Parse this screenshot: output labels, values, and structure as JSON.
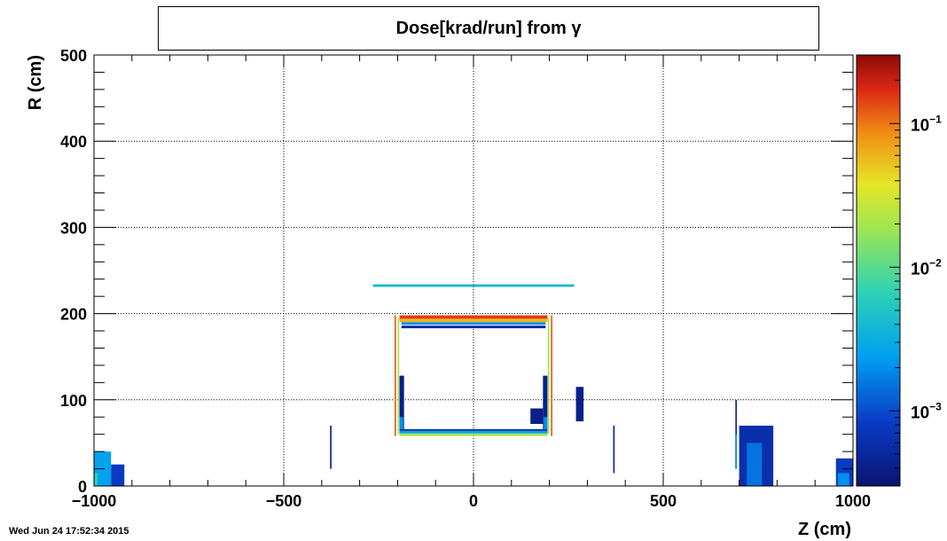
{
  "chart_data": {
    "type": "heatmap",
    "title": "Dose[krad/run] from γ",
    "xlabel": "Z (cm)",
    "ylabel": "R (cm)",
    "xlim": [
      -1000,
      1000
    ],
    "ylim": [
      0,
      500
    ],
    "x_ticks": [
      -1000,
      -500,
      0,
      500,
      1000
    ],
    "x_tick_labels": [
      "−1000",
      "−500",
      "0",
      "500",
      "1000"
    ],
    "y_ticks": [
      0,
      100,
      200,
      300,
      400,
      500
    ],
    "y_tick_labels": [
      "0",
      "100",
      "200",
      "300",
      "400",
      "500"
    ],
    "grid": true,
    "colorbar": {
      "scale": "log",
      "range": [
        0.0003,
        0.3
      ],
      "ticks": [
        0.001,
        0.01,
        0.1
      ],
      "tick_base": "10",
      "tick_exponents": [
        "−3",
        "−2",
        "−1"
      ]
    },
    "regions": [
      {
        "type": "rect",
        "z": [
          -265,
          265
        ],
        "r": [
          231,
          234
        ],
        "dose": 0.004
      },
      {
        "type": "rect",
        "z": [
          -195,
          195
        ],
        "r": [
          194,
          198
        ],
        "dose": 0.15
      },
      {
        "type": "rect",
        "z": [
          -195,
          195
        ],
        "r": [
          190,
          194
        ],
        "dose": 0.06
      },
      {
        "type": "rect",
        "z": [
          -190,
          190
        ],
        "r": [
          187,
          190
        ],
        "dose": 0.002
      },
      {
        "type": "rect",
        "z": [
          -190,
          190
        ],
        "r": [
          183,
          186
        ],
        "dose": 0.0005
      },
      {
        "type": "rect",
        "z": [
          -208,
          -204
        ],
        "r": [
          58,
          198
        ],
        "dose": 0.12
      },
      {
        "type": "rect",
        "z": [
          204,
          208
        ],
        "r": [
          58,
          198
        ],
        "dose": 0.12
      },
      {
        "type": "rect",
        "z": [
          -200,
          -196
        ],
        "r": [
          60,
          195
        ],
        "dose": 0.02
      },
      {
        "type": "rect",
        "z": [
          196,
          200
        ],
        "r": [
          60,
          195
        ],
        "dose": 0.02
      },
      {
        "type": "rect",
        "z": [
          -195,
          195
        ],
        "r": [
          58,
          61
        ],
        "dose": 0.02
      },
      {
        "type": "rect",
        "z": [
          -195,
          195
        ],
        "r": [
          61,
          64
        ],
        "dose": 0.0025
      },
      {
        "type": "rect",
        "z": [
          -195,
          195
        ],
        "r": [
          64,
          66
        ],
        "dose": 0.0005
      },
      {
        "type": "rect",
        "z": [
          -195,
          -183
        ],
        "r": [
          66,
          128
        ],
        "dose": 0.0004
      },
      {
        "type": "rect",
        "z": [
          -195,
          -185
        ],
        "r": [
          66,
          80
        ],
        "dose": 0.002
      },
      {
        "type": "rect",
        "z": [
          183,
          195
        ],
        "r": [
          66,
          128
        ],
        "dose": 0.0004
      },
      {
        "type": "rect",
        "z": [
          185,
          195
        ],
        "r": [
          66,
          80
        ],
        "dose": 0.002
      },
      {
        "type": "rect",
        "z": [
          150,
          183
        ],
        "r": [
          72,
          90
        ],
        "dose": 0.0004
      },
      {
        "type": "rect",
        "z": [
          270,
          290
        ],
        "r": [
          75,
          115
        ],
        "dose": 0.0004
      },
      {
        "type": "rect",
        "z": [
          -1000,
          -955
        ],
        "r": [
          0,
          40
        ],
        "dose": 0.0025
      },
      {
        "type": "rect",
        "z": [
          -955,
          -920
        ],
        "r": [
          0,
          25
        ],
        "dose": 0.0008
      },
      {
        "type": "rect",
        "z": [
          -1000,
          -990
        ],
        "r": [
          0,
          15
        ],
        "dose": 0.006
      },
      {
        "type": "rect",
        "z": [
          -378,
          -374
        ],
        "r": [
          20,
          70
        ],
        "dose": 0.0005
      },
      {
        "type": "rect",
        "z": [
          368,
          372
        ],
        "r": [
          15,
          70
        ],
        "dose": 0.0005
      },
      {
        "type": "rect",
        "z": [
          690,
          694
        ],
        "r": [
          20,
          100
        ],
        "dose": 0.0005
      },
      {
        "type": "rect",
        "z": [
          690,
          694
        ],
        "r": [
          20,
          60
        ],
        "dose": 0.002
      },
      {
        "type": "rect",
        "z": [
          700,
          790
        ],
        "r": [
          0,
          70
        ],
        "dose": 0.0006
      },
      {
        "type": "rect",
        "z": [
          720,
          760
        ],
        "r": [
          0,
          50
        ],
        "dose": 0.0015
      },
      {
        "type": "rect",
        "z": [
          955,
          1000
        ],
        "r": [
          0,
          32
        ],
        "dose": 0.0008
      },
      {
        "type": "rect",
        "z": [
          960,
          990
        ],
        "r": [
          0,
          15
        ],
        "dose": 0.002
      }
    ]
  },
  "timestamp": "Wed Jun 24 17:52:34 2015"
}
